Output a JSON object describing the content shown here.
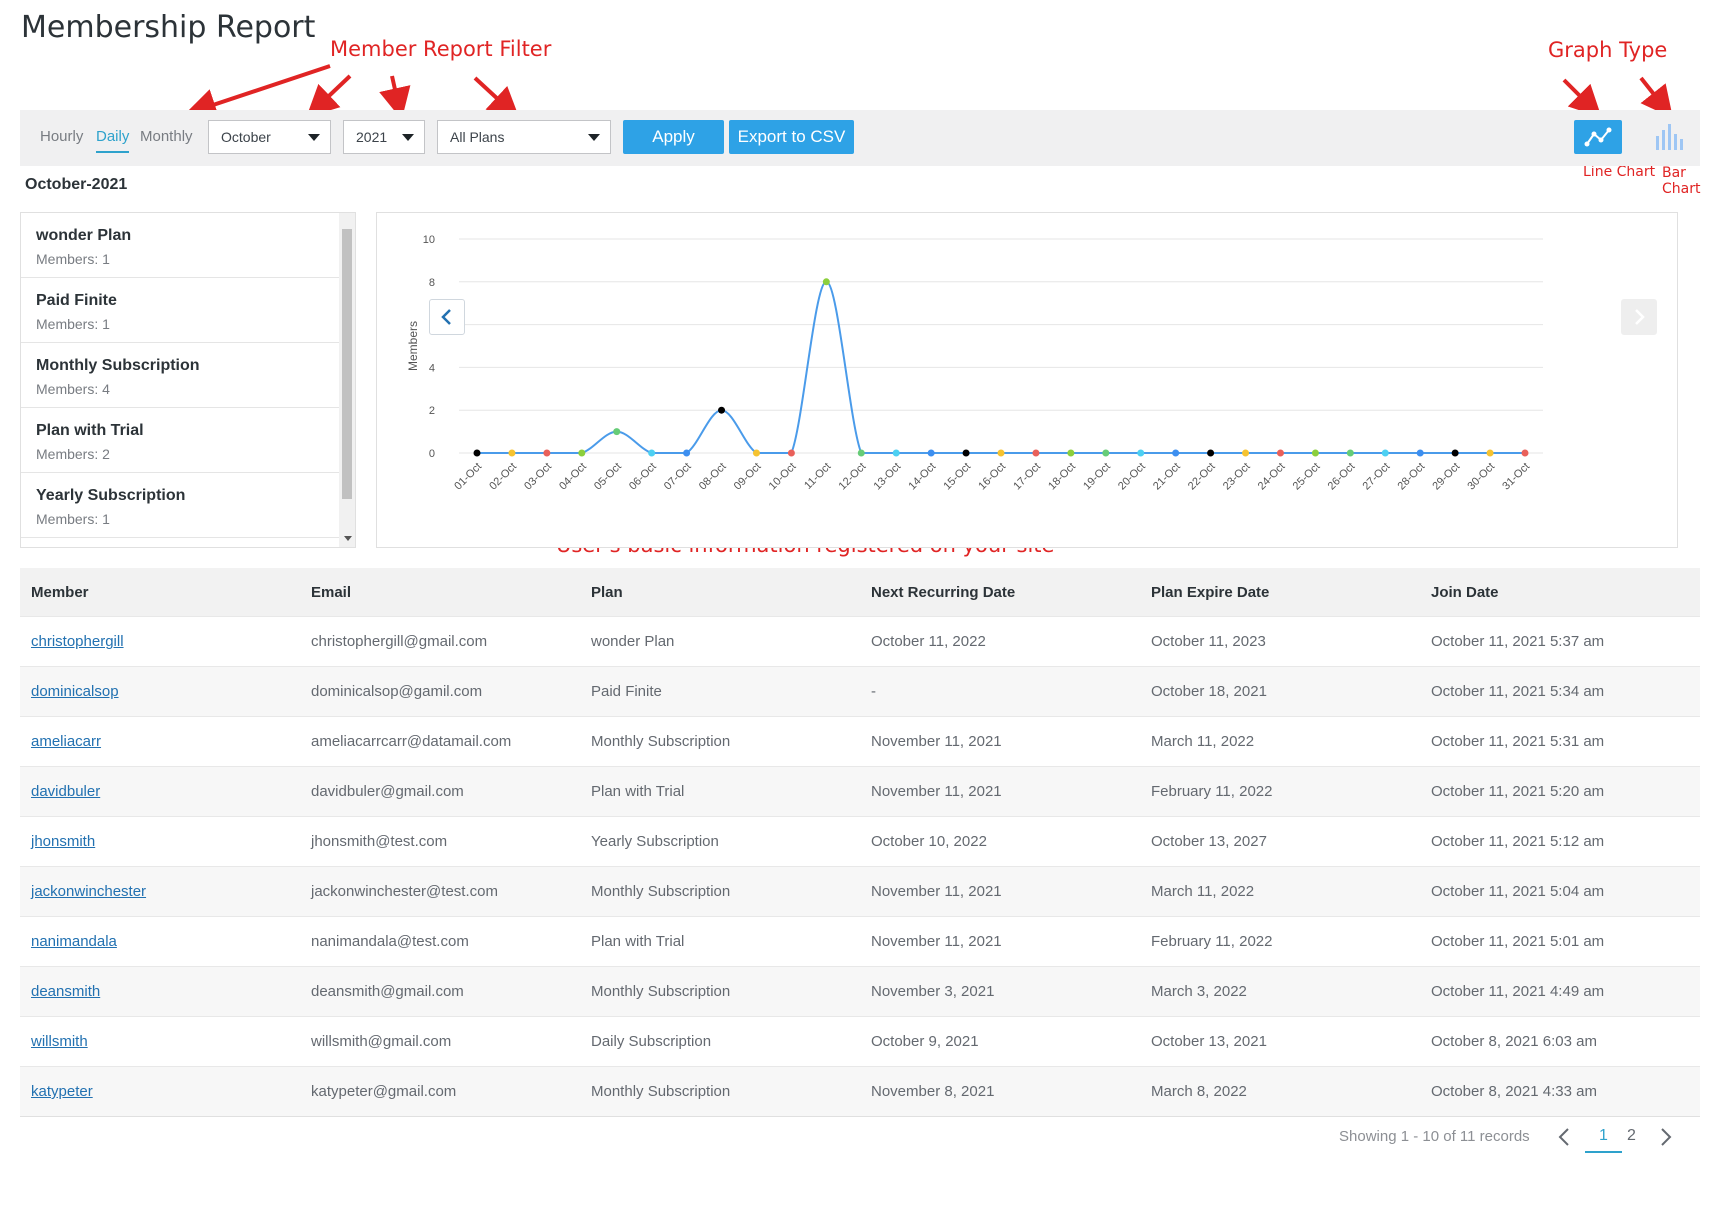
{
  "page": {
    "title": "Membership Report"
  },
  "annotations": {
    "filter": "Member Report Filter",
    "graph_type": "Graph Type",
    "line_chart": "Line Chart",
    "bar_chart": "Bar Chart",
    "table_note": "User's basic information registered on your site"
  },
  "filters": {
    "periods": [
      "Hourly",
      "Daily",
      "Monthly"
    ],
    "active_period": "Daily",
    "month": "October",
    "year": "2021",
    "plan": "All Plans",
    "apply_label": "Apply",
    "export_label": "Export to CSV"
  },
  "graph_type": {
    "active": "line",
    "accent": "#2ea2e6"
  },
  "report_month": "October-2021",
  "plans": [
    {
      "name": "wonder Plan",
      "members": "Members: 1"
    },
    {
      "name": "Paid Finite",
      "members": "Members: 1"
    },
    {
      "name": "Monthly Subscription",
      "members": "Members: 4"
    },
    {
      "name": "Plan with Trial",
      "members": "Members: 2"
    },
    {
      "name": "Yearly Subscription",
      "members": "Members: 1"
    }
  ],
  "chart_data": {
    "type": "line",
    "ylabel": "Members",
    "xlabel": "",
    "ylim": [
      0,
      10
    ],
    "yticks": [
      0,
      2,
      4,
      8,
      10
    ],
    "grid": true,
    "categories": [
      "01-Oct",
      "02-Oct",
      "03-Oct",
      "04-Oct",
      "05-Oct",
      "06-Oct",
      "07-Oct",
      "08-Oct",
      "09-Oct",
      "10-Oct",
      "11-Oct",
      "12-Oct",
      "13-Oct",
      "14-Oct",
      "15-Oct",
      "16-Oct",
      "17-Oct",
      "18-Oct",
      "19-Oct",
      "20-Oct",
      "21-Oct",
      "22-Oct",
      "23-Oct",
      "24-Oct",
      "25-Oct",
      "26-Oct",
      "27-Oct",
      "28-Oct",
      "29-Oct",
      "30-Oct",
      "31-Oct"
    ],
    "values": [
      0,
      0,
      0,
      0,
      1,
      0,
      0,
      2,
      0,
      0,
      8,
      0,
      0,
      0,
      0,
      0,
      0,
      0,
      0,
      0,
      0,
      0,
      0,
      0,
      0,
      0,
      0,
      0,
      0,
      0,
      0
    ],
    "line_color": "#4a9bea",
    "point_colors": [
      "#000000",
      "#f6c330",
      "#e9605a",
      "#8ccf3c",
      "#66cc77",
      "#4dd0f2",
      "#3d8ff0"
    ]
  },
  "table": {
    "headers": [
      "Member",
      "Email",
      "Plan",
      "Next Recurring Date",
      "Plan Expire Date",
      "Join Date"
    ],
    "rows": [
      [
        "christophergill",
        "christophergill@gmail.com",
        "wonder Plan",
        "October 11, 2022",
        "October 11, 2023",
        "October 11, 2021 5:37 am"
      ],
      [
        "dominicalsop",
        "dominicalsop@gamil.com",
        "Paid Finite",
        "-",
        "October 18, 2021",
        "October 11, 2021 5:34 am"
      ],
      [
        "ameliacarr",
        "ameliacarrcarr@datamail.com",
        "Monthly Subscription",
        "November 11, 2021",
        "March 11, 2022",
        "October 11, 2021 5:31 am"
      ],
      [
        "davidbuler",
        "davidbuler@gmail.com",
        "Plan with Trial",
        "November 11, 2021",
        "February 11, 2022",
        "October 11, 2021 5:20 am"
      ],
      [
        "jhonsmith",
        "jhonsmith@test.com",
        "Yearly Subscription",
        "October 10, 2022",
        "October 13, 2027",
        "October 11, 2021 5:12 am"
      ],
      [
        "jackonwinchester",
        "jackonwinchester@test.com",
        "Monthly Subscription",
        "November 11, 2021",
        "March 11, 2022",
        "October 11, 2021 5:04 am"
      ],
      [
        "nanimandala",
        "nanimandala@test.com",
        "Plan with Trial",
        "November 11, 2021",
        "February 11, 2022",
        "October 11, 2021 5:01 am"
      ],
      [
        "deansmith",
        "deansmith@gmail.com",
        "Monthly Subscription",
        "November 3, 2021",
        "March 3, 2022",
        "October 11, 2021 4:49 am"
      ],
      [
        "willsmith",
        "willsmith@gmail.com",
        "Daily Subscription",
        "October 9, 2021",
        "October 13, 2021",
        "October 8, 2021 6:03 am"
      ],
      [
        "katypeter",
        "katypeter@gmail.com",
        "Monthly Subscription",
        "November 8, 2021",
        "March 8, 2022",
        "October 8, 2021 4:33 am"
      ]
    ]
  },
  "pagination": {
    "summary": "Showing 1 - 10 of 11 records",
    "pages": [
      "1",
      "2"
    ],
    "current": "1"
  }
}
